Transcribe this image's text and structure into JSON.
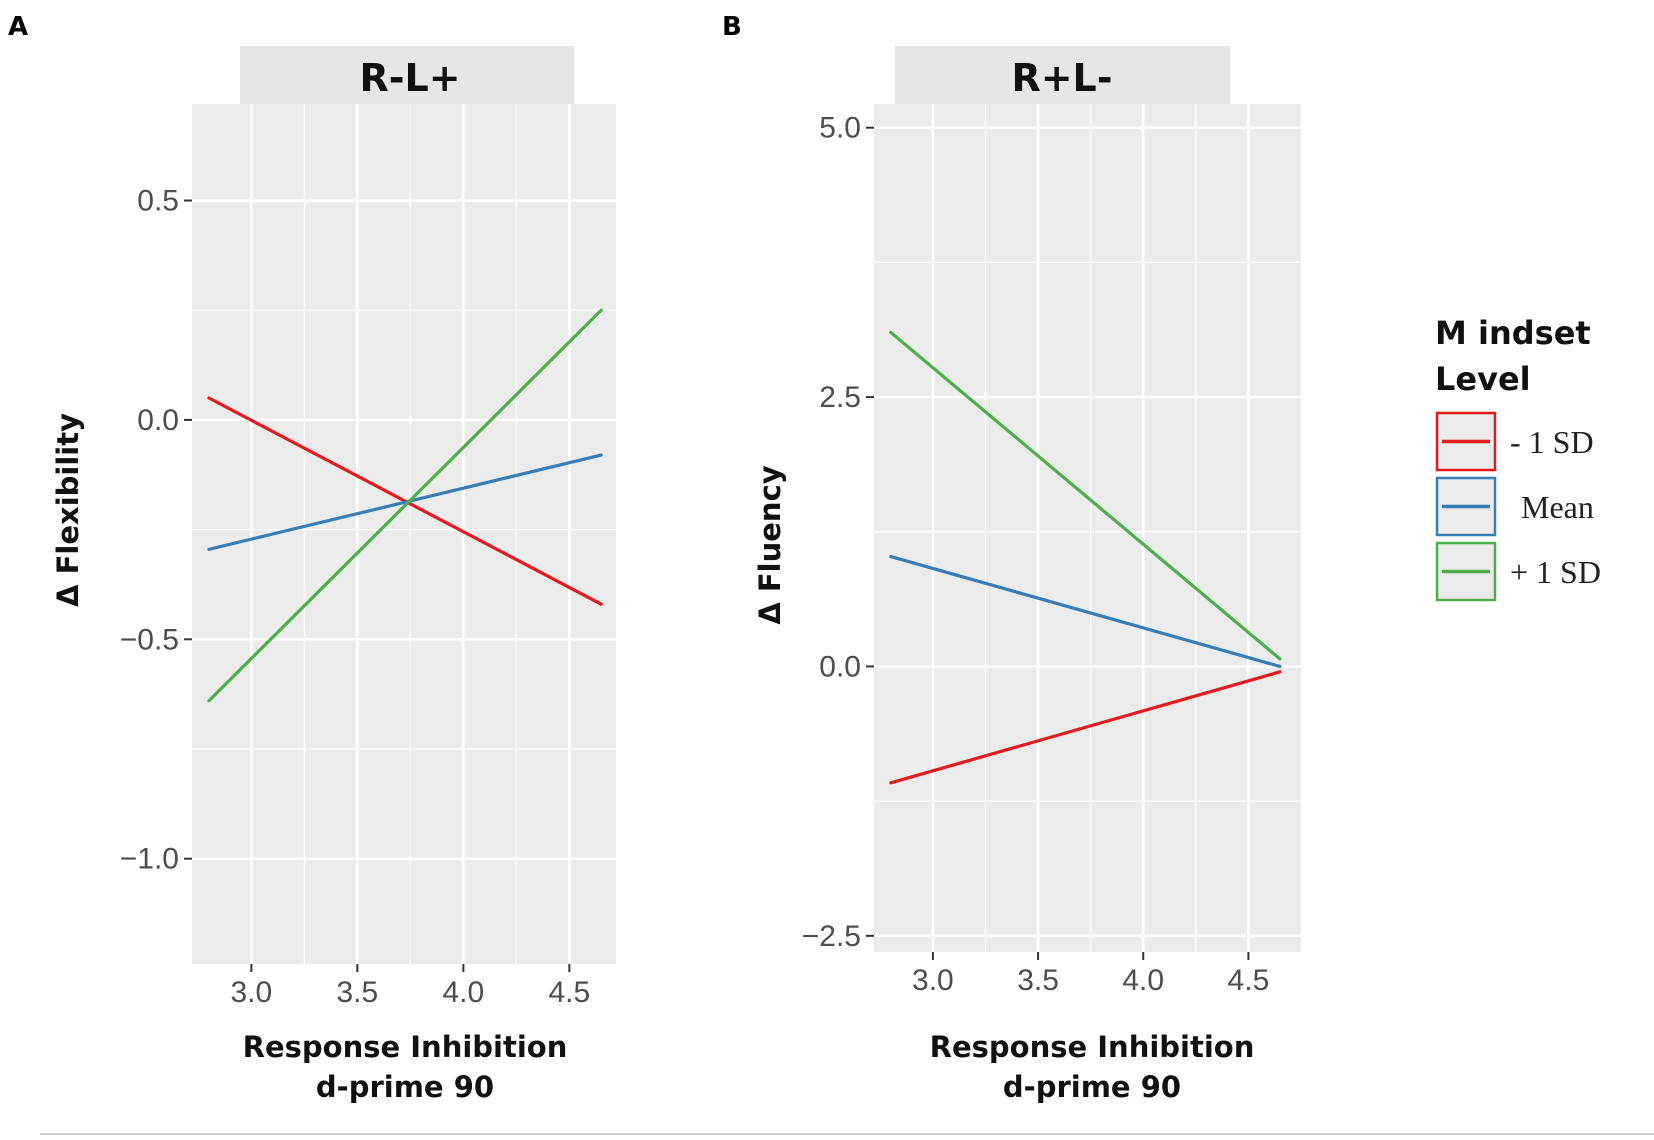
{
  "panel_letters": [
    "A",
    "B"
  ],
  "legend": {
    "title_line1": "M indset",
    "title_line2": "Level"
  },
  "colors": {
    "panel_bg": "#ebebeb",
    "strip_bg": "#e6e6e6",
    "grid": "#ffffff",
    "minus_1sd": "#e41a1c",
    "mean": "#377eb8",
    "plus_1sd": "#4daf4a"
  },
  "chart_data": [
    {
      "type": "line",
      "panel": "A",
      "strip_title": "R-L+",
      "xlabel_line1": "Response Inhibition",
      "xlabel_line2": "d-prime 90",
      "ylabel": "Δ Flexibility",
      "xlim": [
        2.72,
        4.72
      ],
      "ylim": [
        -1.24,
        0.72
      ],
      "xticks": [
        3.0,
        3.5,
        4.0,
        4.5
      ],
      "xtick_labels": [
        "3.0",
        "3.5",
        "4.0",
        "4.5"
      ],
      "yticks": [
        0.5,
        0.0,
        -0.5,
        -1.0
      ],
      "ytick_labels": [
        "0.5",
        "0.0",
        "−0.5",
        "−1.0"
      ],
      "series": [
        {
          "name": "- 1 SD",
          "color": "#e41a1c",
          "x": [
            2.8,
            4.65
          ],
          "y": [
            0.05,
            -0.42
          ]
        },
        {
          "name": "Mean",
          "color": "#377eb8",
          "x": [
            2.8,
            4.65
          ],
          "y": [
            -0.295,
            -0.08
          ]
        },
        {
          "name": "+ 1 SD",
          "color": "#4daf4a",
          "x": [
            2.8,
            4.65
          ],
          "y": [
            -0.64,
            0.25
          ]
        }
      ]
    },
    {
      "type": "line",
      "panel": "B",
      "strip_title": "R+L-",
      "xlabel_line1": "Response Inhibition",
      "xlabel_line2": "d-prime 90",
      "ylabel": "Δ Fluency",
      "xlim": [
        2.72,
        4.75
      ],
      "ylim": [
        -2.65,
        5.22
      ],
      "xticks": [
        3.0,
        3.5,
        4.0,
        4.5
      ],
      "xtick_labels": [
        "3.0",
        "3.5",
        "4.0",
        "4.5"
      ],
      "yticks": [
        5.0,
        2.5,
        0.0,
        -2.5
      ],
      "ytick_labels": [
        "5.0",
        "2.5",
        "0.0",
        "−2.5"
      ],
      "series": [
        {
          "name": "- 1 SD",
          "color": "#e41a1c",
          "x": [
            2.8,
            4.65
          ],
          "y": [
            -1.08,
            -0.05
          ]
        },
        {
          "name": "Mean",
          "color": "#377eb8",
          "x": [
            2.8,
            4.65
          ],
          "y": [
            1.02,
            0.0
          ]
        },
        {
          "name": "+ 1 SD",
          "color": "#4daf4a",
          "x": [
            2.8,
            4.65
          ],
          "y": [
            3.1,
            0.07
          ]
        }
      ]
    }
  ]
}
